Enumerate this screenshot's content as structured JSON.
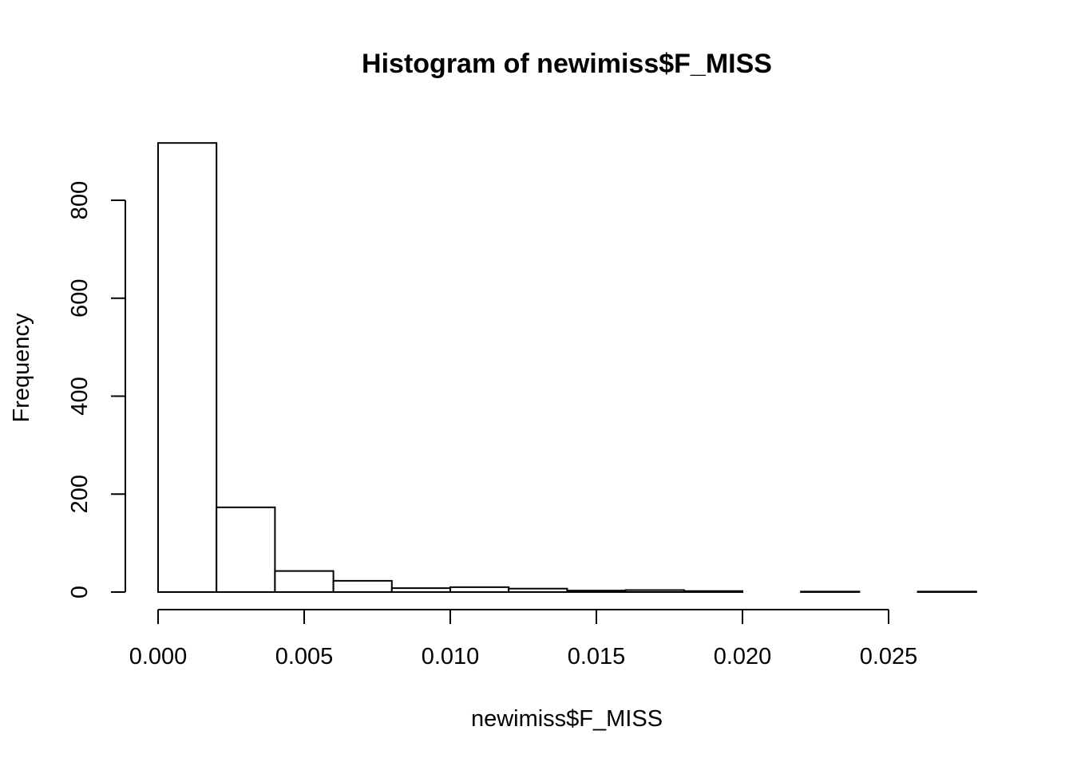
{
  "chart_data": {
    "type": "bar",
    "title": "Histogram of newimiss$F_MISS",
    "xlabel": "newimiss$F_MISS",
    "ylabel": "Frequency",
    "bins": [
      {
        "x0": 0.0,
        "x1": 0.002,
        "count": 917
      },
      {
        "x0": 0.002,
        "x1": 0.004,
        "count": 173
      },
      {
        "x0": 0.004,
        "x1": 0.006,
        "count": 43
      },
      {
        "x0": 0.006,
        "x1": 0.008,
        "count": 23
      },
      {
        "x0": 0.008,
        "x1": 0.01,
        "count": 8
      },
      {
        "x0": 0.01,
        "x1": 0.012,
        "count": 10
      },
      {
        "x0": 0.012,
        "x1": 0.014,
        "count": 7
      },
      {
        "x0": 0.014,
        "x1": 0.016,
        "count": 3
      },
      {
        "x0": 0.016,
        "x1": 0.018,
        "count": 4
      },
      {
        "x0": 0.018,
        "x1": 0.02,
        "count": 2
      },
      {
        "x0": 0.02,
        "x1": 0.022,
        "count": 0
      },
      {
        "x0": 0.022,
        "x1": 0.024,
        "count": 1
      },
      {
        "x0": 0.024,
        "x1": 0.026,
        "count": 0
      },
      {
        "x0": 0.026,
        "x1": 0.028,
        "count": 1
      }
    ],
    "xticks": [
      {
        "value": 0.0,
        "label": "0.000"
      },
      {
        "value": 0.005,
        "label": "0.005"
      },
      {
        "value": 0.01,
        "label": "0.010"
      },
      {
        "value": 0.015,
        "label": "0.015"
      },
      {
        "value": 0.02,
        "label": "0.020"
      },
      {
        "value": 0.025,
        "label": "0.025"
      }
    ],
    "yticks": [
      {
        "value": 0,
        "label": "0"
      },
      {
        "value": 200,
        "label": "200"
      },
      {
        "value": 400,
        "label": "400"
      },
      {
        "value": 600,
        "label": "600"
      },
      {
        "value": 800,
        "label": "800"
      }
    ],
    "xlim": [
      0.0,
      0.028
    ],
    "ylim": [
      0,
      917
    ],
    "grid": false
  }
}
